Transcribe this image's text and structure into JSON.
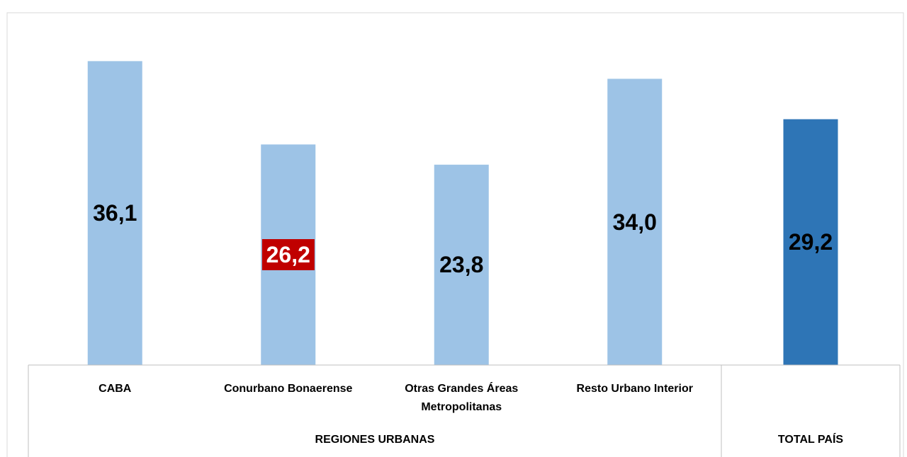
{
  "chart_data": {
    "type": "bar",
    "categories": [
      "CABA",
      "Conurbano Bonaerense",
      "Otras Grandes Áreas Metropolitanas",
      "Resto Urbano Interior",
      null
    ],
    "values": [
      36.1,
      26.2,
      23.8,
      34.0,
      29.2
    ],
    "value_labels": [
      "36,1",
      "26,2",
      "23,8",
      "34,0",
      "29,2"
    ],
    "colors": [
      "#9dc3e6",
      "#9dc3e6",
      "#9dc3e6",
      "#9dc3e6",
      "#2e75b6"
    ],
    "label_backgrounds": [
      null,
      "#c00000",
      null,
      null,
      null
    ],
    "label_colors": [
      "#000000",
      "#ffffff",
      "#000000",
      "#000000",
      "#000000"
    ],
    "groups": [
      {
        "label": "REGIONES URBANAS",
        "count": 4
      },
      {
        "label": "TOTAL PAÍS",
        "count": 1
      }
    ],
    "ylim": [
      0,
      40
    ]
  }
}
